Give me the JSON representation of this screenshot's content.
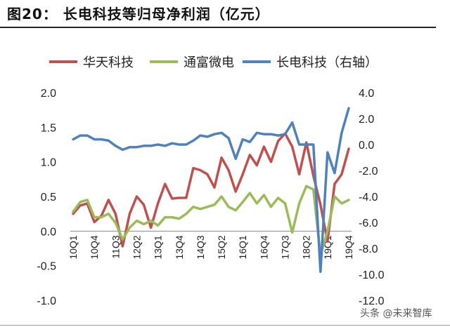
{
  "figure": {
    "title": "图20： 长电科技等归母净利润（亿元）",
    "watermark": "头条 @未来智库"
  },
  "chart_data": {
    "type": "line",
    "x": [
      "10Q1",
      "10Q2",
      "10Q3",
      "10Q4",
      "11Q1",
      "11Q2",
      "11Q3",
      "11Q4",
      "12Q1",
      "12Q2",
      "12Q3",
      "12Q4",
      "13Q1",
      "13Q2",
      "13Q3",
      "13Q4",
      "14Q1",
      "14Q2",
      "14Q3",
      "14Q4",
      "15Q1",
      "15Q2",
      "15Q3",
      "15Q4",
      "16Q1",
      "16Q2",
      "16Q3",
      "16Q4",
      "17Q1",
      "17Q2",
      "17Q3",
      "17Q4",
      "18Q1",
      "18Q2",
      "18Q3",
      "18Q4",
      "19Q1",
      "19Q2",
      "19Q3",
      "19Q4"
    ],
    "xtick_labels": [
      "10Q1",
      "10Q4",
      "11Q3",
      "12Q2",
      "13Q1",
      "13Q4",
      "14Q3",
      "15Q2",
      "16Q1",
      "16Q4",
      "17Q3",
      "18Q2",
      "19Q1",
      "19Q4"
    ],
    "xtick_indices": [
      0,
      3,
      6,
      9,
      12,
      15,
      18,
      21,
      24,
      27,
      30,
      33,
      36,
      39
    ],
    "series": [
      {
        "name": "华天科技",
        "axis": "left",
        "color": "#c0504d",
        "values": [
          0.25,
          0.37,
          0.4,
          0.13,
          0.22,
          0.45,
          0.25,
          -0.22,
          0.25,
          0.5,
          0.38,
          0.05,
          0.4,
          0.68,
          0.47,
          0.48,
          0.48,
          0.91,
          0.88,
          0.82,
          0.63,
          1.06,
          0.88,
          0.57,
          0.82,
          1.1,
          0.95,
          1.22,
          1.0,
          1.3,
          1.41,
          1.22,
          0.82,
          1.28,
          0.8,
          0.38,
          -0.15,
          0.68,
          0.82,
          1.19
        ]
      },
      {
        "name": "通富微电",
        "axis": "left",
        "color": "#9bbb59",
        "values": [
          0.28,
          0.42,
          0.45,
          0.2,
          0.2,
          0.25,
          0.12,
          -0.12,
          0.05,
          0.15,
          0.1,
          0.15,
          0.08,
          0.2,
          0.2,
          0.18,
          0.25,
          0.35,
          0.32,
          0.35,
          0.38,
          0.5,
          0.35,
          0.3,
          0.42,
          0.55,
          0.4,
          0.52,
          0.35,
          0.48,
          0.4,
          -0.02,
          0.4,
          0.65,
          0.6,
          -0.35,
          0.0,
          0.5,
          0.4,
          0.45
        ]
      },
      {
        "name": "长电科技（右轴）",
        "axis": "right",
        "color": "#4f81bd",
        "values": [
          0.4,
          0.7,
          0.7,
          0.4,
          0.4,
          0.3,
          -0.1,
          -0.4,
          -0.2,
          -0.2,
          -0.1,
          -0.1,
          0.0,
          -0.1,
          0.1,
          0.0,
          0.0,
          0.3,
          0.7,
          0.6,
          0.8,
          0.9,
          0.5,
          -1.1,
          0.4,
          0.2,
          0.9,
          0.8,
          0.8,
          0.7,
          0.8,
          1.7,
          0.0,
          0.0,
          0.0,
          -9.8,
          -0.6,
          -2.2,
          0.9,
          2.8
        ]
      }
    ],
    "left_axis": {
      "ylim": [
        -1.0,
        2.0
      ],
      "ticks": [
        "-1.0",
        "-0.5",
        "0.0",
        "0.5",
        "1.0",
        "1.5",
        "2.0"
      ]
    },
    "right_axis": {
      "ylim": [
        -12.0,
        4.0
      ],
      "ticks": [
        "-12.0",
        "-10.0",
        "-8.0",
        "-6.0",
        "-4.0",
        "-2.0",
        "0.0",
        "2.0",
        "4.0"
      ]
    },
    "legend": {
      "position": "top",
      "labels": [
        "华天科技",
        "通富微电",
        "长电科技（右轴）"
      ]
    },
    "grid": false
  }
}
